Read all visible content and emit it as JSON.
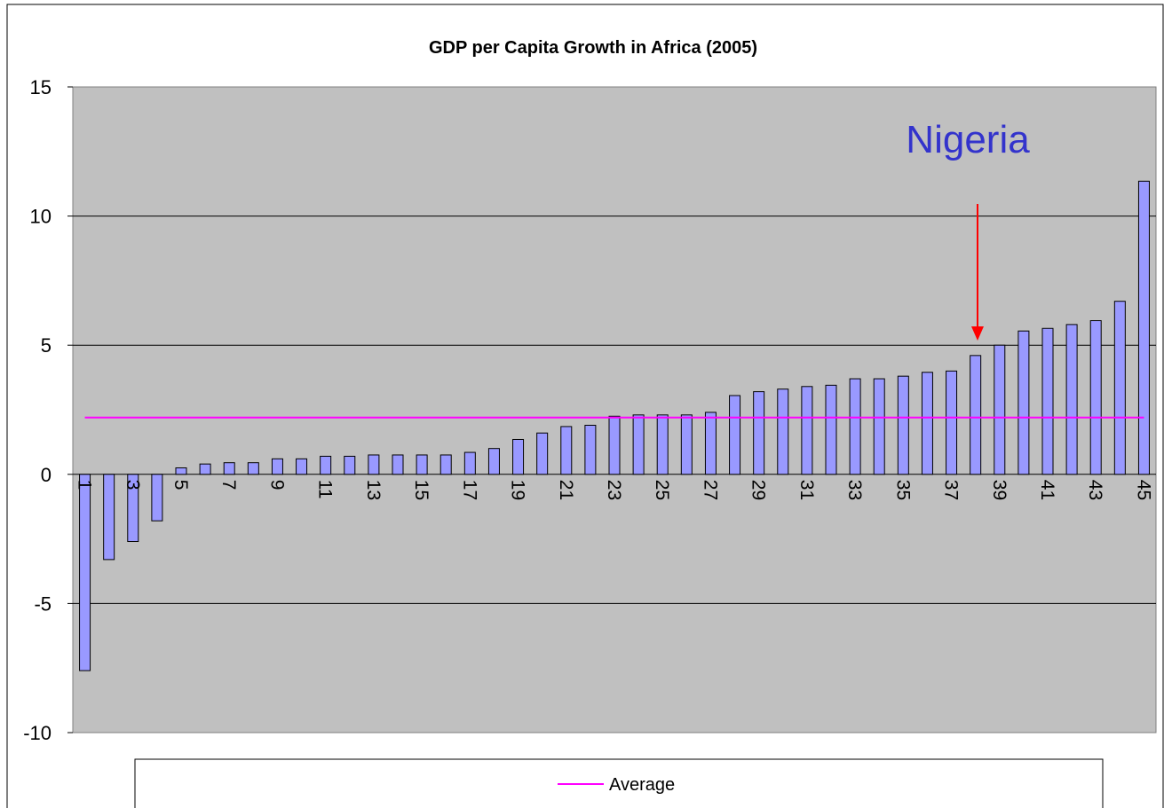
{
  "chart_data": {
    "type": "bar",
    "title": "GDP per Capita Growth in Africa (2005)",
    "categories": [
      "1",
      null,
      "3",
      null,
      "5",
      null,
      "7",
      null,
      "9",
      null,
      "11",
      null,
      "13",
      null,
      "15",
      null,
      "17",
      null,
      "19",
      null,
      "21",
      null,
      "23",
      null,
      "25",
      null,
      "27",
      null,
      "29",
      null,
      "31",
      null,
      "33",
      null,
      "35",
      null,
      "37",
      null,
      "39",
      null,
      "41",
      null,
      "43",
      null,
      "45"
    ],
    "values": [
      -7.6,
      -3.3,
      -2.6,
      -1.8,
      0.25,
      0.4,
      0.45,
      0.45,
      0.6,
      0.6,
      0.7,
      0.7,
      0.75,
      0.75,
      0.75,
      0.75,
      0.85,
      1.0,
      1.35,
      1.6,
      1.85,
      1.9,
      2.25,
      2.3,
      2.3,
      2.3,
      2.4,
      3.05,
      3.2,
      3.3,
      3.4,
      3.45,
      3.7,
      3.7,
      3.8,
      3.95,
      4.0,
      4.6,
      5.0,
      5.55,
      5.65,
      5.8,
      5.95,
      6.7,
      11.35
    ],
    "color": "#9999ff",
    "average": {
      "name": "Average",
      "value": 2.2,
      "color": "#ff00ff"
    },
    "annotation": {
      "text": "Nigeria",
      "color": "#3333cc"
    },
    "ylim": [
      -10,
      15
    ],
    "yticks": [
      -10,
      -5,
      0,
      5,
      10,
      15
    ],
    "grid": true
  }
}
